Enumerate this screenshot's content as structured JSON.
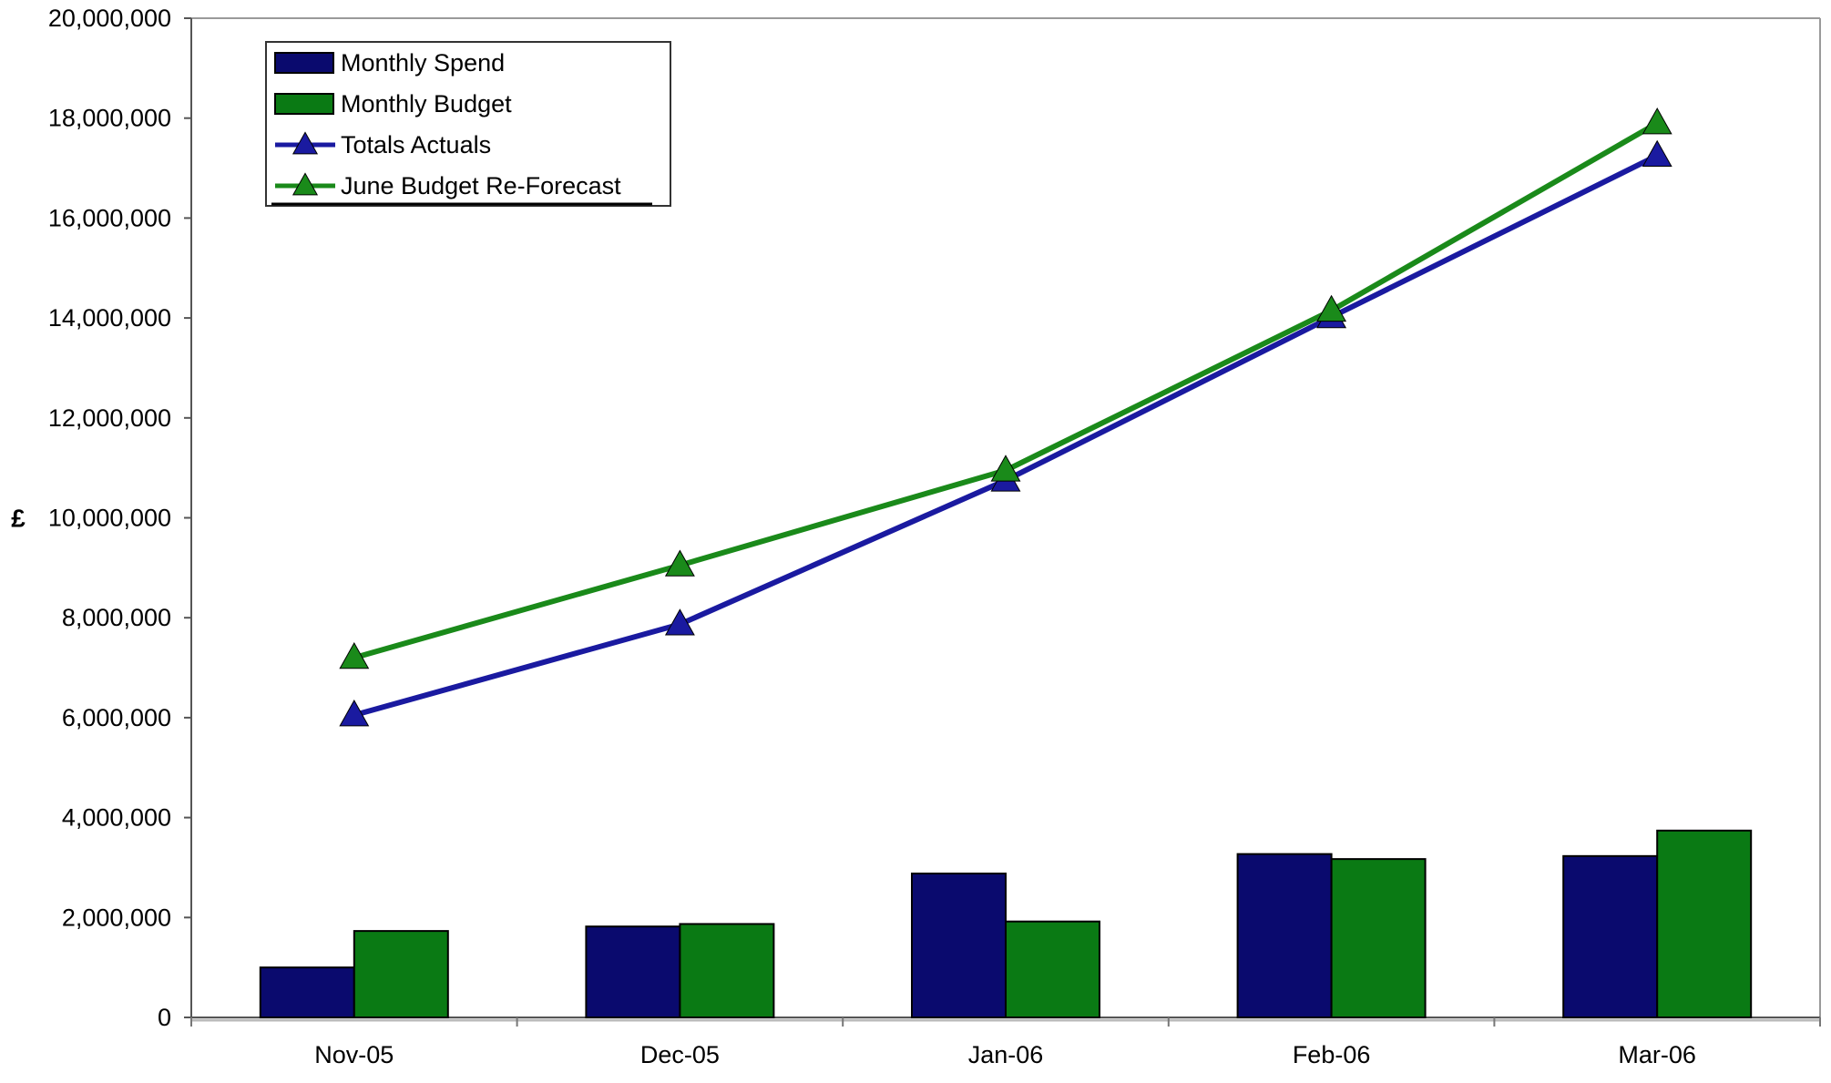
{
  "chart_data": {
    "type": "bar",
    "categories": [
      "Nov-05",
      "Dec-05",
      "Jan-06",
      "Feb-06",
      "Mar-06"
    ],
    "series": [
      {
        "name": "Monthly Spend",
        "type": "bar",
        "color": "#0a0a6e",
        "values": [
          1000000,
          1820000,
          2880000,
          3270000,
          3230000
        ]
      },
      {
        "name": "Monthly Budget",
        "type": "bar",
        "color": "#0a7a14",
        "values": [
          1730000,
          1870000,
          1920000,
          3170000,
          3740000
        ]
      },
      {
        "name": "Totals Actuals",
        "type": "line",
        "marker": "triangle",
        "color": "#1a1aa0",
        "values": [
          6050000,
          7870000,
          10750000,
          14020000,
          17250000
        ]
      },
      {
        "name": "June Budget Re-Forecast",
        "type": "line",
        "marker": "triangle",
        "color": "#1a8a1a",
        "values": [
          7200000,
          9050000,
          10950000,
          14150000,
          17900000
        ]
      }
    ],
    "ylabel": "£",
    "ylim": [
      0,
      20000000
    ],
    "yticks": [
      0,
      2000000,
      4000000,
      6000000,
      8000000,
      10000000,
      12000000,
      14000000,
      16000000,
      18000000,
      20000000
    ],
    "ytick_labels": [
      "0",
      "2,000,000",
      "4,000,000",
      "6,000,000",
      "8,000,000",
      "10,000,000",
      "12,000,000",
      "14,000,000",
      "16,000,000",
      "18,000,000",
      "20,000,000"
    ],
    "grid": false,
    "legend": "top-left"
  }
}
